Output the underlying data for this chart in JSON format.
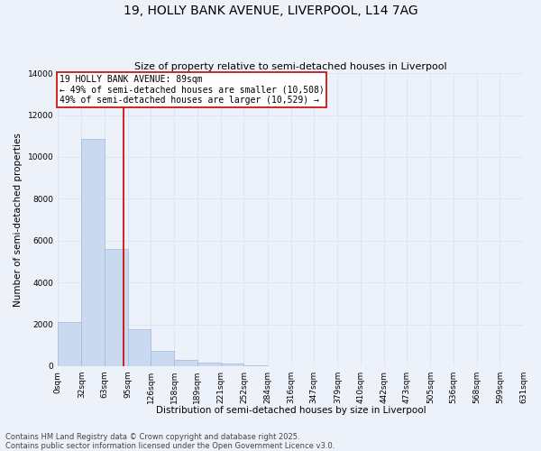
{
  "title_line1": "19, HOLLY BANK AVENUE, LIVERPOOL, L14 7AG",
  "title_line2": "Size of property relative to semi-detached houses in Liverpool",
  "xlabel": "Distribution of semi-detached houses by size in Liverpool",
  "ylabel": "Number of semi-detached properties",
  "bar_color": "#c9d9f0",
  "bar_edge_color": "#a0b8d8",
  "bar_values": [
    2100,
    10850,
    5600,
    1750,
    750,
    310,
    180,
    120,
    60,
    0,
    0,
    0,
    0,
    0,
    0,
    0,
    0,
    0,
    0,
    0
  ],
  "bin_labels": [
    "0sqm",
    "32sqm",
    "63sqm",
    "95sqm",
    "126sqm",
    "158sqm",
    "189sqm",
    "221sqm",
    "252sqm",
    "284sqm",
    "316sqm",
    "347sqm",
    "379sqm",
    "410sqm",
    "442sqm",
    "473sqm",
    "505sqm",
    "536sqm",
    "568sqm",
    "599sqm",
    "631sqm"
  ],
  "bin_edges": [
    0,
    32,
    63,
    95,
    126,
    158,
    189,
    221,
    252,
    284,
    316,
    347,
    379,
    410,
    442,
    473,
    505,
    536,
    568,
    599,
    631
  ],
  "property_size": 89,
  "vline_x": 89,
  "vline_color": "#cc0000",
  "annotation_text": "19 HOLLY BANK AVENUE: 89sqm\n← 49% of semi-detached houses are smaller (10,508)\n49% of semi-detached houses are larger (10,529) →",
  "annotation_box_color": "#ffffff",
  "annotation_box_edge": "#cc0000",
  "ylim": [
    0,
    14000
  ],
  "yticks": [
    0,
    2000,
    4000,
    6000,
    8000,
    10000,
    12000,
    14000
  ],
  "grid_color": "#dce6f5",
  "background_color": "#edf2fa",
  "footer_text": "Contains HM Land Registry data © Crown copyright and database right 2025.\nContains public sector information licensed under the Open Government Licence v3.0.",
  "title_fontsize": 10,
  "subtitle_fontsize": 8,
  "label_fontsize": 7.5,
  "tick_fontsize": 6.5,
  "annotation_fontsize": 7,
  "footer_fontsize": 6
}
